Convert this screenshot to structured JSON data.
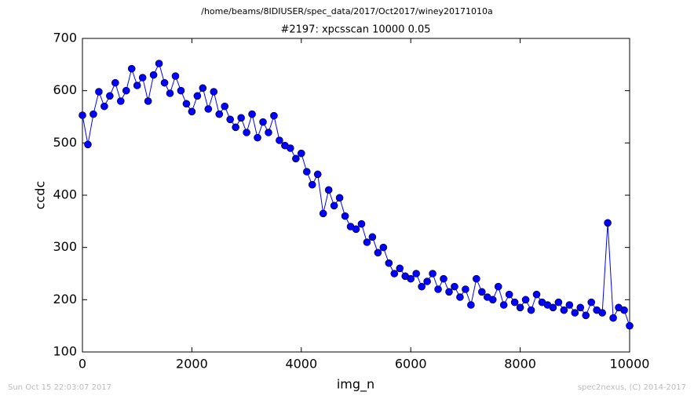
{
  "page": {
    "path": "/home/beams/8IDIUSER/spec_data/2017/Oct2017/winey20171010a",
    "timestamp": "Sun Oct 15 22:03:07 2017",
    "credit": "spec2nexus, (C) 2014-2017"
  },
  "chart_data": {
    "type": "line",
    "title": "#2197: xpcsscan 10000 0.05",
    "x_label": "img_n",
    "y_label": "ccdc",
    "x": [
      0,
      100,
      200,
      300,
      400,
      500,
      600,
      700,
      800,
      900,
      1000,
      1100,
      1200,
      1300,
      1400,
      1500,
      1600,
      1700,
      1800,
      1900,
      2000,
      2100,
      2200,
      2300,
      2400,
      2500,
      2600,
      2700,
      2800,
      2900,
      3000,
      3100,
      3200,
      3300,
      3400,
      3500,
      3600,
      3700,
      3800,
      3900,
      4000,
      4100,
      4200,
      4300,
      4400,
      4500,
      4600,
      4700,
      4800,
      4900,
      5000,
      5100,
      5200,
      5300,
      5400,
      5500,
      5600,
      5700,
      5800,
      5900,
      6000,
      6100,
      6200,
      6300,
      6400,
      6500,
      6600,
      6700,
      6800,
      6900,
      7000,
      7100,
      7200,
      7300,
      7400,
      7500,
      7600,
      7700,
      7800,
      7900,
      8000,
      8100,
      8200,
      8300,
      8400,
      8500,
      8600,
      8700,
      8800,
      8900,
      9000,
      9100,
      9200,
      9300,
      9400,
      9500,
      9600,
      9700,
      9800,
      9900,
      10000
    ],
    "series": [
      {
        "name": "ccdc",
        "color": "#0000ff",
        "values": [
          553,
          497,
          555,
          598,
          570,
          590,
          615,
          580,
          600,
          642,
          610,
          625,
          580,
          630,
          652,
          615,
          595,
          628,
          600,
          575,
          560,
          590,
          605,
          565,
          598,
          555,
          570,
          545,
          530,
          548,
          520,
          555,
          510,
          540,
          520,
          552,
          505,
          495,
          490,
          470,
          480,
          445,
          420,
          440,
          365,
          410,
          380,
          395,
          360,
          340,
          335,
          345,
          310,
          320,
          290,
          300,
          270,
          250,
          260,
          245,
          240,
          250,
          225,
          235,
          250,
          220,
          240,
          215,
          225,
          205,
          220,
          190,
          240,
          215,
          205,
          200,
          225,
          190,
          210,
          195,
          185,
          200,
          180,
          210,
          195,
          190,
          185,
          195,
          180,
          190,
          175,
          185,
          170,
          195,
          180,
          175,
          347,
          165,
          185,
          180,
          150
        ]
      }
    ],
    "xlim": [
      0,
      10000
    ],
    "ylim": [
      100,
      700
    ],
    "xticks": [
      0,
      2000,
      4000,
      6000,
      8000,
      10000
    ],
    "yticks": [
      100,
      200,
      300,
      400,
      500,
      600,
      700
    ],
    "grid": false
  }
}
